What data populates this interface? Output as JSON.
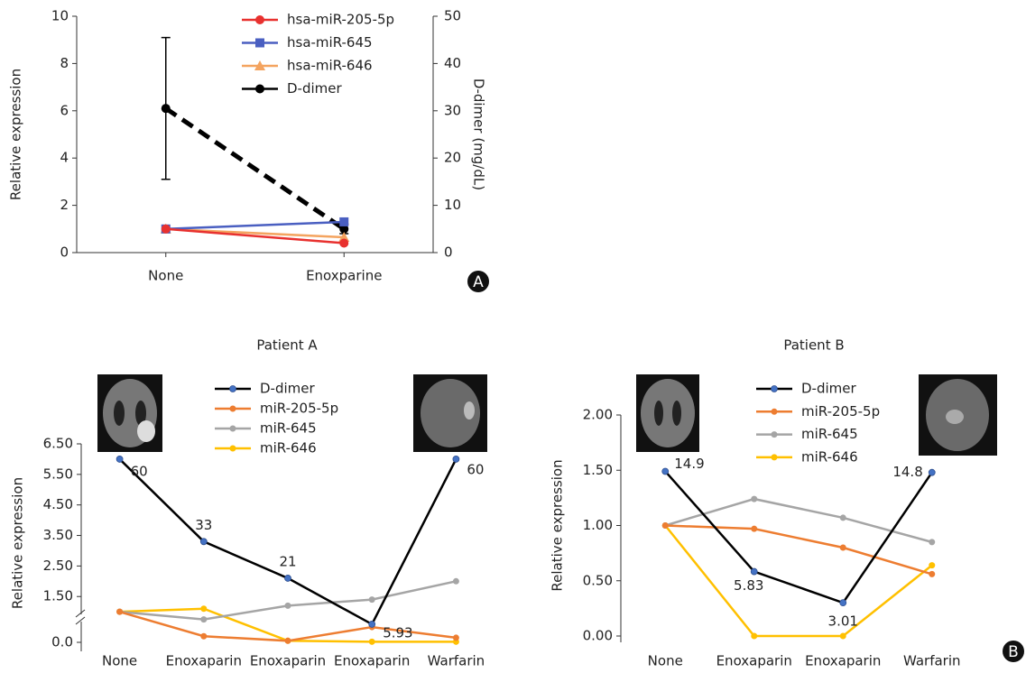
{
  "chart_data": [
    {
      "type": "line",
      "categories": [
        "None",
        "Enoxparine"
      ],
      "ylabel": "Relative expression",
      "y2label": "D-dimer (mg/dL)",
      "ylim": [
        0,
        10
      ],
      "yticks": [
        0,
        2,
        4,
        6,
        8,
        10
      ],
      "y2lim": [
        0,
        50
      ],
      "y2ticks": [
        0,
        10,
        20,
        30,
        40,
        50
      ],
      "panel_label": "A",
      "series": [
        {
          "name": "hsa-miR-205-5p",
          "color": "#e8312f",
          "marker": "circle",
          "values": [
            1.0,
            0.4
          ]
        },
        {
          "name": "hsa-miR-645",
          "color": "#4a5fc1",
          "marker": "square",
          "values": [
            1.0,
            1.3
          ]
        },
        {
          "name": "hsa-miR-646",
          "color": "#f4a460",
          "marker": "triangle",
          "values": [
            1.0,
            0.65
          ]
        },
        {
          "name": "D-dimer",
          "color": "#000000",
          "marker": "circle",
          "line_style": "dashed",
          "axis": "y2",
          "values": [
            30.5,
            5
          ],
          "errors": [
            15,
            1
          ]
        }
      ]
    },
    {
      "type": "line",
      "title": "Patient A",
      "categories": [
        "None",
        "Enoxaparin",
        "Enoxaparin",
        "Enoxaparin",
        "Warfarin"
      ],
      "ylabel": "Relative expression",
      "ylim": [
        0,
        6.5
      ],
      "axis_break": true,
      "yticks": [
        {
          "value": 0,
          "label": "0.0"
        },
        {
          "value": 1.5,
          "label": "1.50"
        },
        {
          "value": 2.5,
          "label": "2.50"
        },
        {
          "value": 3.5,
          "label": "3.50"
        },
        {
          "value": 4.5,
          "label": "4.50"
        },
        {
          "value": 5.5,
          "label": "5.50"
        },
        {
          "value": 6.5,
          "label": "6.50"
        }
      ],
      "series": [
        {
          "name": "D-dimer",
          "color": "#000000",
          "marker_color": "#4472c4",
          "values": [
            6.0,
            3.3,
            2.1,
            0.593,
            6.0
          ],
          "value_labels": [
            "60",
            "33",
            "21",
            "5.93",
            "60"
          ]
        },
        {
          "name": "miR-205-5p",
          "color": "#ed7d31",
          "values": [
            1.0,
            0.2,
            0.05,
            0.5,
            0.15
          ]
        },
        {
          "name": "miR-645",
          "color": "#a5a5a5",
          "values": [
            1.0,
            0.75,
            1.2,
            1.4,
            2.0
          ]
        },
        {
          "name": "miR-646",
          "color": "#ffc000",
          "values": [
            1.0,
            1.1,
            0.05,
            0.02,
            0.02
          ]
        }
      ]
    },
    {
      "type": "line",
      "title": "Patient B",
      "categories": [
        "None",
        "Enoxaparin",
        "Enoxaparin",
        "Warfarin"
      ],
      "ylabel": "Relative expression",
      "ylim": [
        0,
        2
      ],
      "yticks": [
        {
          "value": 0,
          "label": "0.00"
        },
        {
          "value": 0.5,
          "label": "0.50"
        },
        {
          "value": 1,
          "label": "1.00"
        },
        {
          "value": 1.5,
          "label": "1.50"
        },
        {
          "value": 2,
          "label": "2.00"
        }
      ],
      "panel_label": "B",
      "series": [
        {
          "name": "D-dimer",
          "color": "#000000",
          "marker_color": "#4472c4",
          "values": [
            1.49,
            0.583,
            0.301,
            1.48
          ],
          "value_labels": [
            "14.9",
            "5.83",
            "3.01",
            "14.8"
          ]
        },
        {
          "name": "miR-205-5p",
          "color": "#ed7d31",
          "values": [
            1.0,
            0.97,
            0.8,
            0.56
          ]
        },
        {
          "name": "miR-645",
          "color": "#a5a5a5",
          "values": [
            1.0,
            1.24,
            1.07,
            0.85
          ]
        },
        {
          "name": "miR-646",
          "color": "#ffc000",
          "values": [
            1.0,
            0,
            0,
            0.64
          ]
        }
      ]
    }
  ]
}
